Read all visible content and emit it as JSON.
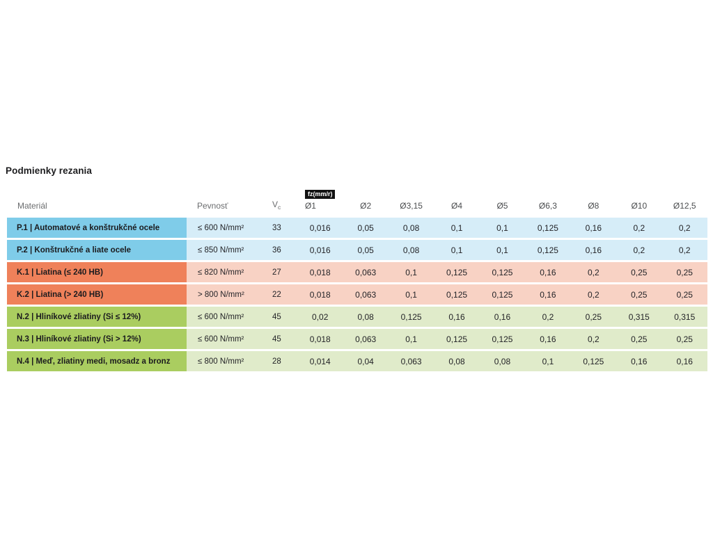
{
  "page": {
    "title": "Podmienky rezania"
  },
  "table": {
    "headers": {
      "material": "Materiál",
      "strength": "Pevnosť",
      "vc_main": "V",
      "vc_sub": "c",
      "fz_badge": "fz(mm/r)",
      "diameters": [
        "Ø1",
        "Ø2",
        "Ø3,15",
        "Ø4",
        "Ø5",
        "Ø6,3",
        "Ø8",
        "Ø10",
        "Ø12,5"
      ]
    },
    "rows": [
      {
        "group": "P",
        "material": "P.1 | Automatové a konštrukčné ocele",
        "strength": "≤ 600 N/mm²",
        "vc": "33",
        "values": [
          "0,016",
          "0,05",
          "0,08",
          "0,1",
          "0,1",
          "0,125",
          "0,16",
          "0,2",
          "0,2"
        ]
      },
      {
        "group": "P",
        "material": "P.2 | Konštrukčné a liate ocele",
        "strength": "≤ 850 N/mm²",
        "vc": "36",
        "values": [
          "0,016",
          "0,05",
          "0,08",
          "0,1",
          "0,1",
          "0,125",
          "0,16",
          "0,2",
          "0,2"
        ]
      },
      {
        "group": "K",
        "material": "K.1 | Liatina (≤ 240 HB)",
        "strength": "≤ 820 N/mm²",
        "vc": "27",
        "values": [
          "0,018",
          "0,063",
          "0,1",
          "0,125",
          "0,125",
          "0,16",
          "0,2",
          "0,25",
          "0,25"
        ]
      },
      {
        "group": "K",
        "material": "K.2 | Liatina (> 240 HB)",
        "strength": "> 800 N/mm²",
        "vc": "22",
        "values": [
          "0,018",
          "0,063",
          "0,1",
          "0,125",
          "0,125",
          "0,16",
          "0,2",
          "0,25",
          "0,25"
        ]
      },
      {
        "group": "N",
        "material": "N.2 | Hliníkové zliatiny (Si ≤ 12%)",
        "strength": "≤ 600 N/mm²",
        "vc": "45",
        "values": [
          "0,02",
          "0,08",
          "0,125",
          "0,16",
          "0,16",
          "0,2",
          "0,25",
          "0,315",
          "0,315"
        ]
      },
      {
        "group": "N",
        "material": "N.3 | Hliníkové zliatiny (Si > 12%)",
        "strength": "≤ 600 N/mm²",
        "vc": "45",
        "values": [
          "0,018",
          "0,063",
          "0,1",
          "0,125",
          "0,125",
          "0,16",
          "0,2",
          "0,25",
          "0,25"
        ]
      },
      {
        "group": "N",
        "material": "N.4 | Meď, zliatiny medi, mosadz a bronz",
        "strength": "≤ 800 N/mm²",
        "vc": "28",
        "values": [
          "0,014",
          "0,04",
          "0,063",
          "0,08",
          "0,08",
          "0,1",
          "0,125",
          "0,16",
          "0,16"
        ]
      }
    ]
  },
  "colors": {
    "P": {
      "label": "#7fcce9",
      "row": "#d6edf8"
    },
    "K": {
      "label": "#ef815a",
      "row": "#f8d2c4"
    },
    "N": {
      "label": "#aacd60",
      "row": "#e0ebca"
    },
    "badge_bg": "#121212",
    "badge_text": "#ffffff"
  },
  "chart_data": {
    "type": "table",
    "title": "Podmienky rezania",
    "feed_unit_label": "fz(mm/r)",
    "columns": [
      "Materiál",
      "Pevnosť",
      "Vc",
      "Ø1",
      "Ø2",
      "Ø3,15",
      "Ø4",
      "Ø5",
      "Ø6,3",
      "Ø8",
      "Ø10",
      "Ø12,5"
    ],
    "rows": [
      [
        "P.1 | Automatové a konštrukčné ocele",
        "≤ 600 N/mm²",
        "33",
        "0,016",
        "0,05",
        "0,08",
        "0,1",
        "0,1",
        "0,125",
        "0,16",
        "0,2",
        "0,2"
      ],
      [
        "P.2 | Konštrukčné a liate ocele",
        "≤ 850 N/mm²",
        "36",
        "0,016",
        "0,05",
        "0,08",
        "0,1",
        "0,1",
        "0,125",
        "0,16",
        "0,2",
        "0,2"
      ],
      [
        "K.1 | Liatina (≤ 240 HB)",
        "≤ 820 N/mm²",
        "27",
        "0,018",
        "0,063",
        "0,1",
        "0,125",
        "0,125",
        "0,16",
        "0,2",
        "0,25",
        "0,25"
      ],
      [
        "K.2 | Liatina (> 240 HB)",
        "> 800 N/mm²",
        "22",
        "0,018",
        "0,063",
        "0,1",
        "0,125",
        "0,125",
        "0,16",
        "0,2",
        "0,25",
        "0,25"
      ],
      [
        "N.2 | Hliníkové zliatiny (Si ≤ 12%)",
        "≤ 600 N/mm²",
        "45",
        "0,02",
        "0,08",
        "0,125",
        "0,16",
        "0,16",
        "0,2",
        "0,25",
        "0,315",
        "0,315"
      ],
      [
        "N.3 | Hliníkové zliatiny (Si > 12%)",
        "≤ 600 N/mm²",
        "45",
        "0,018",
        "0,063",
        "0,1",
        "0,125",
        "0,125",
        "0,16",
        "0,2",
        "0,25",
        "0,25"
      ],
      [
        "N.4 | Meď, zliatiny medi, mosadz a bronz",
        "≤ 800 N/mm²",
        "28",
        "0,014",
        "0,04",
        "0,063",
        "0,08",
        "0,08",
        "0,1",
        "0,125",
        "0,16",
        "0,16"
      ]
    ]
  }
}
